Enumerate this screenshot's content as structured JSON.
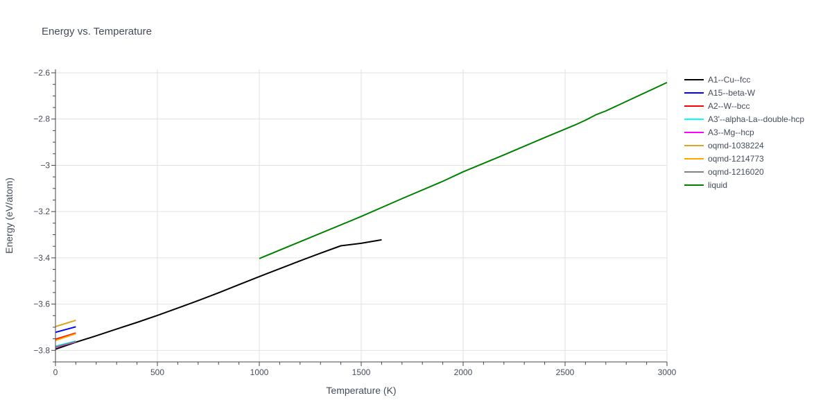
{
  "chart_data": {
    "type": "line",
    "title": "Energy vs. Temperature",
    "xlabel": "Temperature (K)",
    "ylabel": "Energy (eV/atom)",
    "xlim": [
      0,
      3000
    ],
    "ylim": [
      -3.85,
      -2.585
    ],
    "x_ticks": [
      0,
      500,
      1000,
      1500,
      2000,
      2500,
      3000
    ],
    "x_tick_labels": [
      "0",
      "500",
      "1000",
      "1500",
      "2000",
      "2500",
      "3000"
    ],
    "y_ticks": [
      -3.8,
      -3.6,
      -3.4,
      -3.2,
      -3.0,
      -2.8,
      -2.6
    ],
    "y_tick_labels": [
      "−3.8",
      "−3.6",
      "−3.4",
      "−3.2",
      "−3",
      "−2.8",
      "−2.6"
    ],
    "grid": true,
    "legend_position": "right",
    "series": [
      {
        "name": "A1--Cu--fcc",
        "color": "#000000",
        "x": [
          0,
          100,
          200,
          300,
          400,
          500,
          600,
          700,
          800,
          900,
          1000,
          1100,
          1200,
          1300,
          1400,
          1500,
          1600
        ],
        "y": [
          -3.795,
          -3.765,
          -3.737,
          -3.708,
          -3.679,
          -3.649,
          -3.617,
          -3.585,
          -3.551,
          -3.516,
          -3.481,
          -3.447,
          -3.413,
          -3.38,
          -3.348,
          -3.337,
          -3.322
        ]
      },
      {
        "name": "A15--beta-W",
        "color": "#0000ff",
        "x": [
          0,
          100
        ],
        "y": [
          -3.722,
          -3.698
        ]
      },
      {
        "name": "A2--W--bcc",
        "color": "#ff0000",
        "x": [
          0,
          100
        ],
        "y": [
          -3.752,
          -3.725
        ]
      },
      {
        "name": "A3'--alpha-La--double-hcp",
        "color": "#00ffff",
        "x": [
          0,
          100
        ],
        "y": [
          -3.782,
          -3.76
        ]
      },
      {
        "name": "A3--Mg--hcp",
        "color": "#ff00ff",
        "x": [
          0,
          100
        ],
        "y": [
          -3.787,
          -3.763
        ]
      },
      {
        "name": "oqmd-1038224",
        "color": "#daa520",
        "x": [
          0,
          100
        ],
        "y": [
          -3.697,
          -3.67
        ]
      },
      {
        "name": "oqmd-1214773",
        "color": "#ffa500",
        "x": [
          0,
          100
        ],
        "y": [
          -3.757,
          -3.728
        ]
      },
      {
        "name": "oqmd-1216020",
        "color": "#808080",
        "x": [
          0,
          100
        ],
        "y": [
          -3.785,
          -3.762
        ]
      },
      {
        "name": "liquid",
        "color": "#008000",
        "x": [
          1000,
          1500,
          1700,
          1900,
          2000,
          2200,
          2400,
          2550,
          2600,
          2650,
          2700,
          3000
        ],
        "y": [
          -3.403,
          -3.221,
          -3.144,
          -3.069,
          -3.028,
          -2.955,
          -2.88,
          -2.825,
          -2.805,
          -2.782,
          -2.765,
          -2.642
        ]
      }
    ]
  }
}
